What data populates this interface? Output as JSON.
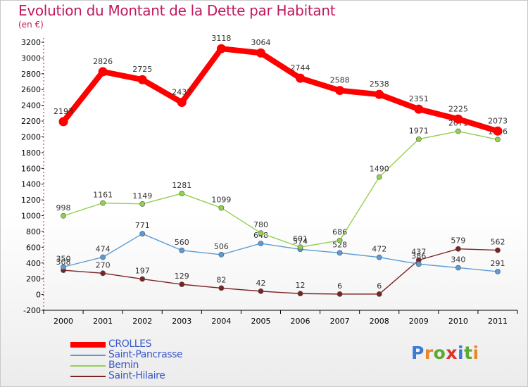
{
  "title": "Evolution du Montant de la Dette par Habitant",
  "subtitle": "(en €)",
  "brand": {
    "text": "Proxiti",
    "letter_colors": [
      "#3a7bd5",
      "#e8862a",
      "#5caa2e",
      "#d9342b",
      "#3a7bd5",
      "#5caa2e",
      "#e8862a"
    ]
  },
  "chart_data": {
    "type": "line",
    "x": [
      "2000",
      "2001",
      "2002",
      "2003",
      "2004",
      "2005",
      "2006",
      "2007",
      "2008",
      "2009",
      "2010",
      "2011"
    ],
    "yticks": [
      "-200",
      "0",
      "200",
      "400",
      "600",
      "800",
      "1000",
      "1200",
      "1400",
      "1600",
      "1800",
      "2000",
      "2200",
      "2400",
      "2600",
      "2800",
      "3000",
      "3200"
    ],
    "ylim": [
      -200,
      3200
    ],
    "grid": false,
    "legend_position": "bottom-left",
    "series": [
      {
        "name": "CROLLES",
        "color": "#ff0000",
        "values": [
          2193,
          2826,
          2725,
          2437,
          3118,
          3064,
          2744,
          2588,
          2538,
          2351,
          2225,
          2073
        ],
        "labels": [
          "2193",
          "2826",
          "2725",
          "2437",
          "3118",
          "3064",
          "2744",
          "2588",
          "2538",
          "2351",
          "2225",
          "2073"
        ]
      },
      {
        "name": "Saint-Pancrasse",
        "color": "#5b9bd5",
        "values": [
          350,
          474,
          771,
          560,
          506,
          648,
          574,
          528,
          472,
          386,
          340,
          291
        ],
        "labels": [
          "350",
          "474",
          "771",
          "560",
          "506",
          "648",
          "574",
          "528",
          "472",
          "386",
          "340",
          "291"
        ]
      },
      {
        "name": "Bernin",
        "color": "#92d050",
        "values": [
          998,
          1161,
          1149,
          1281,
          1099,
          780,
          601,
          686,
          1490,
          1971,
          2071,
          1966
        ],
        "labels": [
          "998",
          "1161",
          "1149",
          "1281",
          "1099",
          "780",
          "601",
          "686",
          "1490",
          "1971",
          "2071",
          "1966"
        ]
      },
      {
        "name": "Saint-Hilaire",
        "color": "#7b2323",
        "values": [
          308,
          270,
          197,
          129,
          82,
          42,
          12,
          6,
          6,
          437,
          579,
          562
        ],
        "labels": [
          "308",
          "270",
          "197",
          "129",
          "82",
          "42",
          "12",
          "6",
          "6",
          "437",
          "579",
          "562"
        ]
      }
    ]
  }
}
